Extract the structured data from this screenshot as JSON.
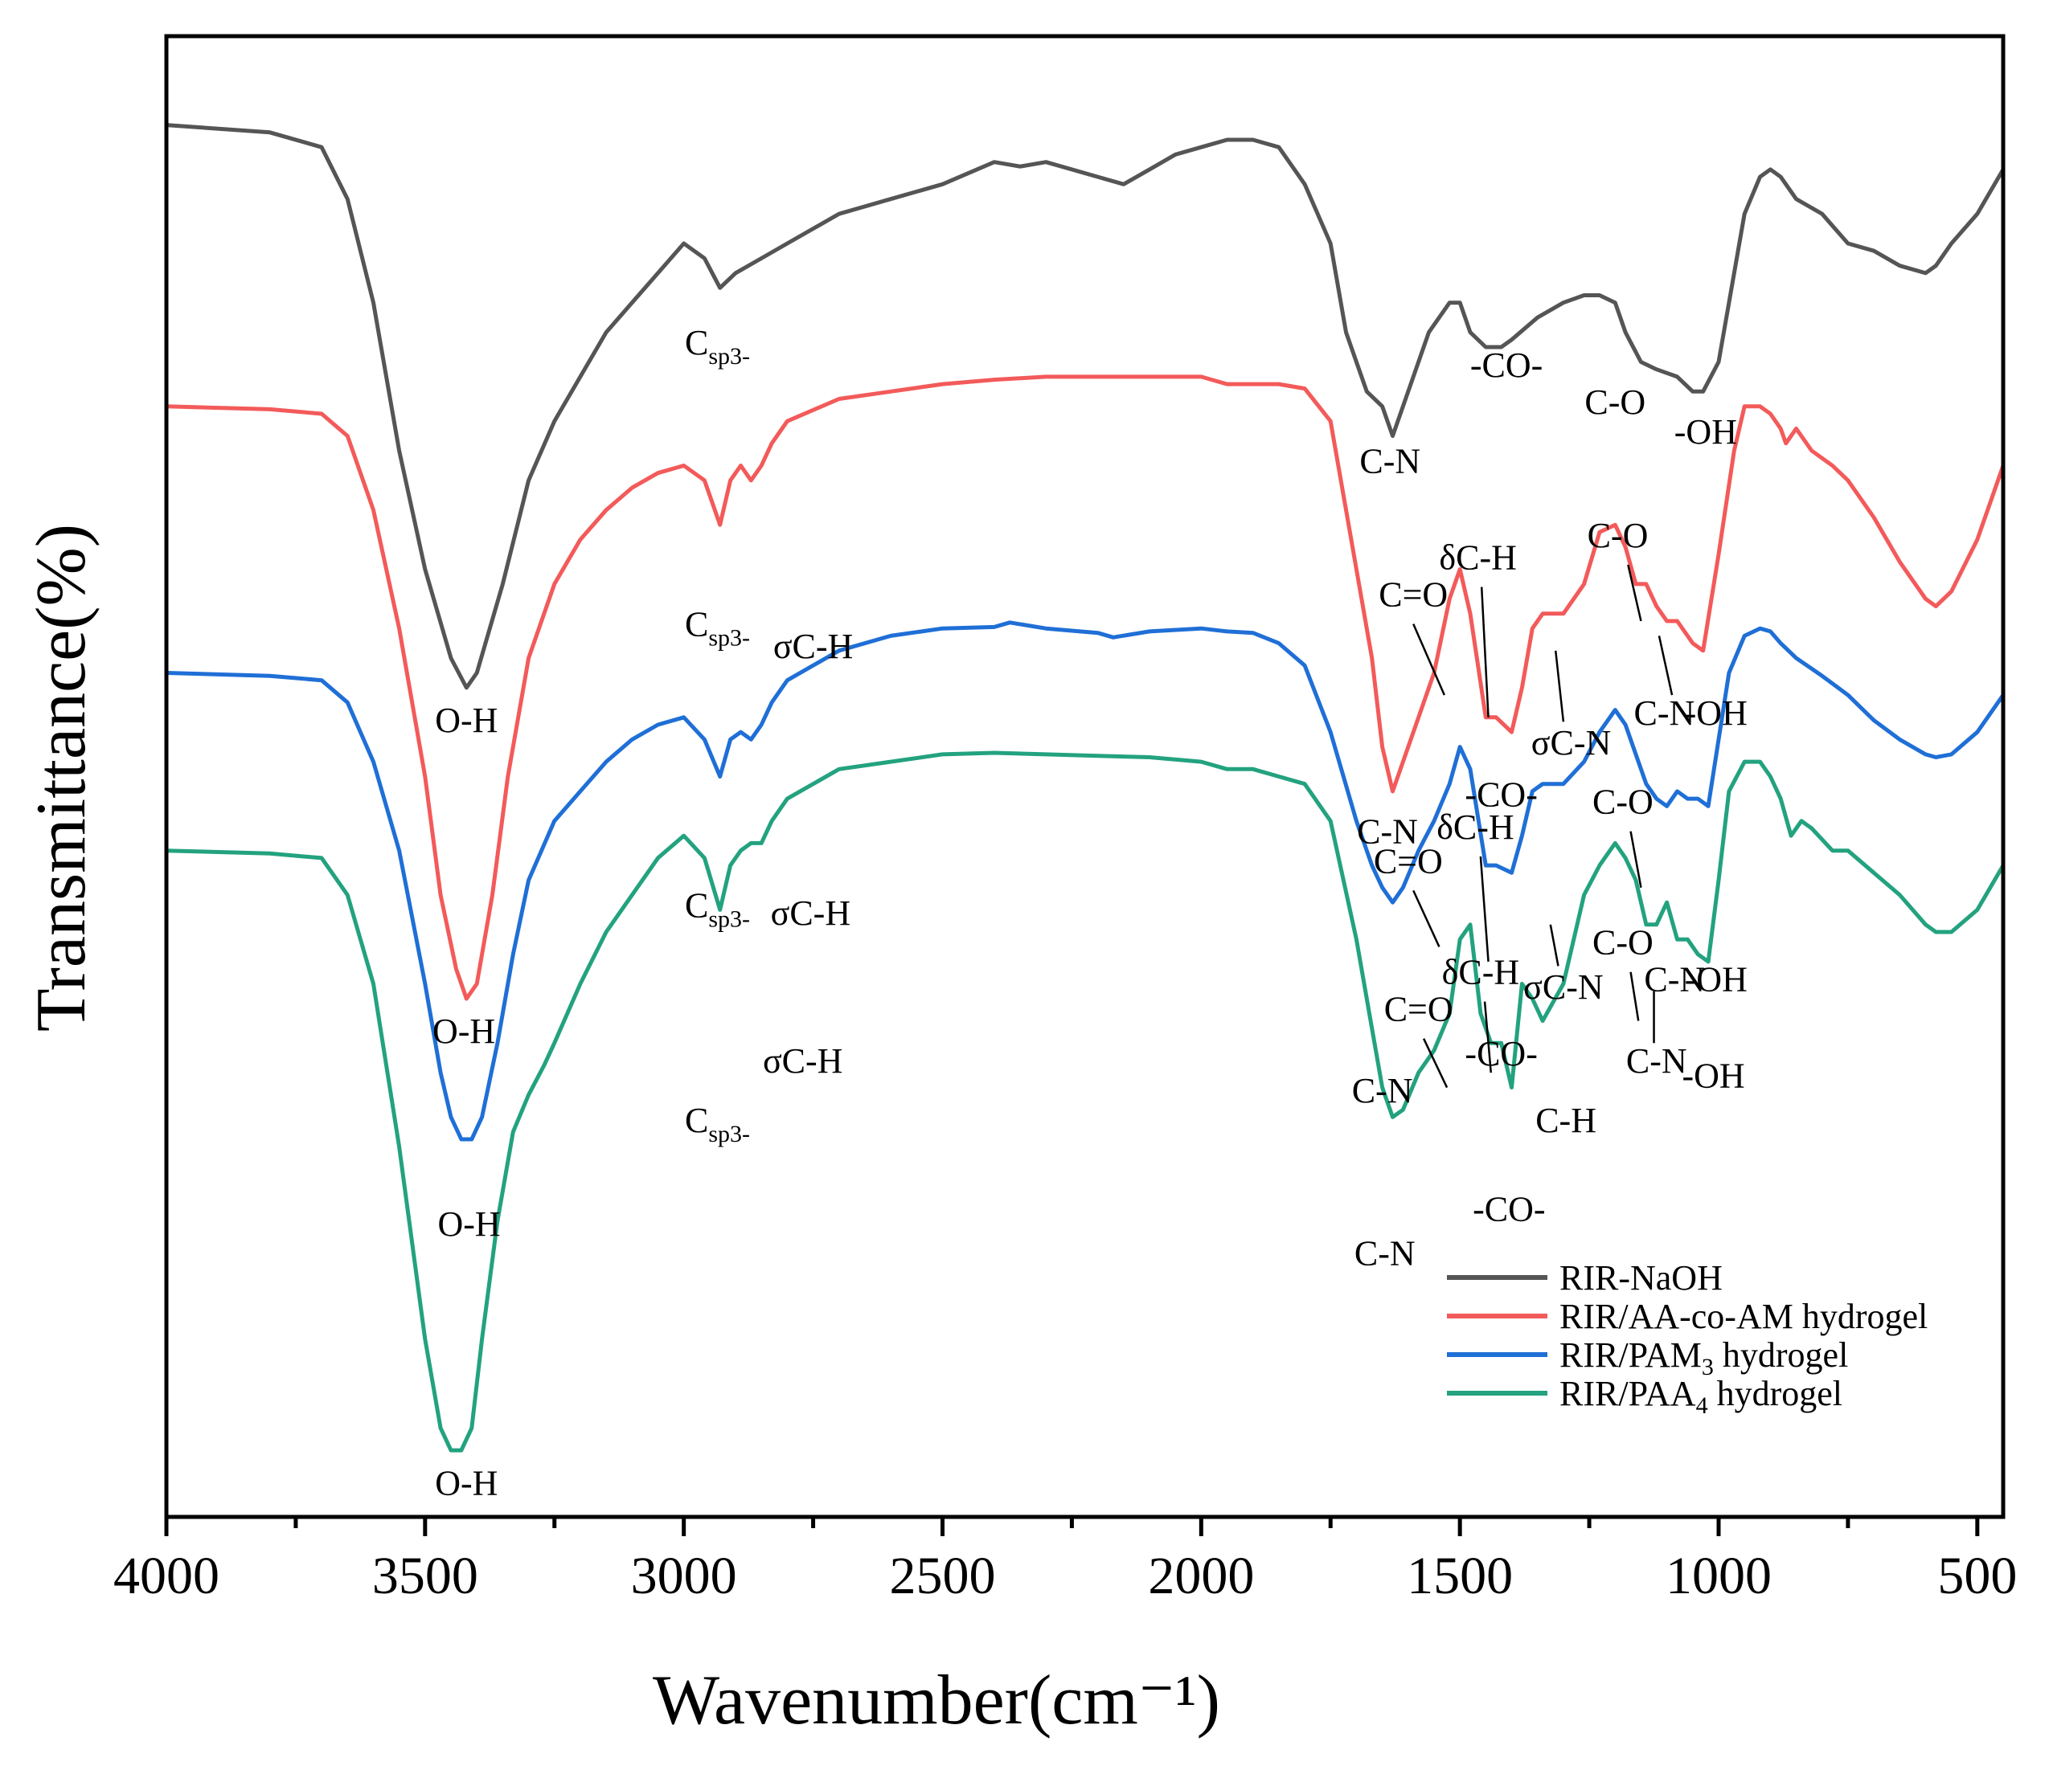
{
  "chart_data": {
    "type": "line",
    "title": "",
    "xlabel": "Wavenumber(cm⁻¹)",
    "ylabel": "Transmittance(%)",
    "xlim": [
      4000,
      450
    ],
    "ylim": [
      0,
      100
    ],
    "xticks": [
      4000,
      3500,
      3000,
      2500,
      2000,
      1500,
      1000,
      500
    ],
    "x_minor_ticks": [
      3750,
      3250,
      2750,
      2250,
      1750,
      1250,
      750
    ],
    "grid": false,
    "legend_position": "bottom-right",
    "colors": {
      "RIR-NaOH": "#555555",
      "RIR/AA-co-AM hydrogel": "#f35a5a",
      "RIR/PAM3 hydrogel": "#1f6fd6",
      "RIR/PAA4 hydrogel": "#23a27f"
    },
    "legend": [
      {
        "name": "RIR-NaOH",
        "color": "#555555",
        "base": "RIR-NaOH",
        "sub": "",
        "tail": ""
      },
      {
        "name": "RIR/AA-co-AM hydrogel",
        "color": "#f35a5a",
        "base": "RIR/AA-co-AM hydrogel",
        "sub": "",
        "tail": ""
      },
      {
        "name": "RIR/PAM3 hydrogel",
        "color": "#1f6fd6",
        "base": "RIR/PAM",
        "sub": "3",
        "tail": " hydrogel"
      },
      {
        "name": "RIR/PAA4 hydrogel",
        "color": "#23a27f",
        "base": "RIR/PAA",
        "sub": "4",
        "tail": " hydrogel"
      }
    ],
    "series": [
      {
        "name": "RIR-NaOH",
        "color": "#555555",
        "x": [
          4000,
          3800,
          3700,
          3650,
          3600,
          3550,
          3500,
          3450,
          3420,
          3400,
          3350,
          3300,
          3250,
          3200,
          3150,
          3100,
          3050,
          3000,
          2960,
          2930,
          2900,
          2850,
          2800,
          2700,
          2600,
          2500,
          2400,
          2350,
          2300,
          2200,
          2150,
          2100,
          2050,
          2000,
          1950,
          1900,
          1850,
          1800,
          1750,
          1720,
          1700,
          1680,
          1650,
          1630,
          1600,
          1560,
          1520,
          1500,
          1480,
          1450,
          1420,
          1400,
          1350,
          1300,
          1260,
          1230,
          1200,
          1180,
          1150,
          1120,
          1080,
          1050,
          1030,
          1000,
          980,
          950,
          920,
          900,
          880,
          850,
          800,
          750,
          700,
          650,
          600,
          580,
          550,
          500,
          450
        ],
        "y": [
          94,
          93.5,
          92.5,
          89,
          82,
          72,
          64,
          58,
          56,
          57,
          63,
          70,
          74,
          77,
          80,
          82,
          84,
          86,
          85,
          83,
          84,
          85,
          86,
          88,
          89,
          90,
          91.5,
          91.2,
          91.5,
          90.5,
          90,
          91,
          92,
          92.5,
          93,
          93,
          92.5,
          90,
          86,
          80,
          78,
          76,
          75,
          73,
          76,
          80,
          82,
          82,
          80,
          79,
          79,
          79.5,
          81,
          82,
          82.5,
          82.5,
          82,
          80,
          78,
          77.5,
          77,
          76,
          76,
          78,
          82,
          88,
          90.5,
          91,
          90.5,
          89,
          88,
          86,
          85.5,
          84.5,
          84,
          84.5,
          86,
          88,
          91
        ]
      },
      {
        "name": "RIR/AA-co-AM hydrogel",
        "color": "#f35a5a",
        "x": [
          4000,
          3800,
          3700,
          3650,
          3600,
          3550,
          3500,
          3470,
          3440,
          3420,
          3400,
          3370,
          3340,
          3300,
          3250,
          3200,
          3150,
          3100,
          3050,
          3000,
          2960,
          2930,
          2910,
          2890,
          2870,
          2850,
          2830,
          2800,
          2700,
          2600,
          2500,
          2400,
          2300,
          2200,
          2100,
          2000,
          1950,
          1900,
          1850,
          1800,
          1750,
          1700,
          1670,
          1650,
          1630,
          1610,
          1580,
          1550,
          1520,
          1500,
          1480,
          1450,
          1430,
          1400,
          1380,
          1360,
          1340,
          1300,
          1260,
          1230,
          1200,
          1180,
          1160,
          1140,
          1120,
          1100,
          1080,
          1050,
          1030,
          1000,
          970,
          950,
          920,
          900,
          880,
          870,
          850,
          820,
          780,
          750,
          700,
          650,
          600,
          580,
          550,
          500,
          450
        ],
        "y": [
          75,
          74.8,
          74.5,
          73,
          68,
          60,
          50,
          42,
          37,
          35,
          36,
          42,
          50,
          58,
          63,
          66,
          68,
          69.5,
          70.5,
          71,
          70,
          67,
          70,
          71,
          70,
          71,
          72.5,
          74,
          75.5,
          76,
          76.5,
          76.8,
          77,
          77,
          77,
          77,
          76.5,
          76.5,
          76.5,
          76.2,
          74,
          64,
          58,
          52,
          49,
          51,
          54,
          57,
          62,
          64,
          61,
          54,
          54,
          53,
          56,
          60,
          61,
          61,
          63,
          66.5,
          67,
          65.5,
          63,
          63,
          61.5,
          60.5,
          60.5,
          59,
          58.5,
          65,
          72,
          75,
          75,
          74.5,
          73.5,
          72.5,
          73.5,
          72,
          71,
          70,
          67.5,
          64.5,
          62,
          61.5,
          62.5,
          66,
          71
        ]
      },
      {
        "name": "RIR/PAM3 hydrogel",
        "color": "#1f6fd6",
        "x": [
          4000,
          3800,
          3700,
          3650,
          3600,
          3550,
          3500,
          3470,
          3450,
          3430,
          3410,
          3390,
          3360,
          3330,
          3300,
          3250,
          3200,
          3150,
          3100,
          3050,
          3000,
          2960,
          2930,
          2910,
          2890,
          2870,
          2850,
          2830,
          2800,
          2700,
          2600,
          2500,
          2400,
          2370,
          2300,
          2200,
          2170,
          2100,
          2000,
          1950,
          1900,
          1850,
          1800,
          1750,
          1700,
          1670,
          1650,
          1630,
          1610,
          1580,
          1550,
          1520,
          1500,
          1480,
          1450,
          1430,
          1400,
          1380,
          1360,
          1340,
          1300,
          1260,
          1230,
          1200,
          1180,
          1160,
          1140,
          1120,
          1100,
          1080,
          1060,
          1040,
          1020,
          1000,
          980,
          950,
          920,
          900,
          880,
          850,
          800,
          750,
          700,
          650,
          600,
          580,
          550,
          500,
          450
        ],
        "y": [
          57,
          56.8,
          56.5,
          55,
          51,
          45,
          36,
          30,
          27,
          25.5,
          25.5,
          27,
          32,
          38,
          43,
          47,
          49,
          51,
          52.5,
          53.5,
          54,
          52.5,
          50,
          52.5,
          53,
          52.5,
          53.5,
          55,
          56.5,
          58.5,
          59.5,
          60,
          60.1,
          60.4,
          60,
          59.7,
          59.4,
          59.8,
          60,
          59.8,
          59.7,
          59,
          57.5,
          53,
          47,
          44,
          42.5,
          41.5,
          42.5,
          45,
          47,
          49.5,
          52,
          50.5,
          44,
          44,
          43.5,
          46,
          49,
          49.5,
          49.5,
          51,
          53,
          54.5,
          53.5,
          51.5,
          49.5,
          48.5,
          48,
          49,
          48.5,
          48.5,
          48,
          52.5,
          57,
          59.5,
          60,
          59.8,
          59,
          58,
          56.8,
          55.5,
          53.8,
          52.5,
          51.5,
          51.3,
          51.5,
          53,
          55.5
        ]
      },
      {
        "name": "RIR/PAA4 hydrogel",
        "color": "#23a27f",
        "x": [
          4000,
          3800,
          3700,
          3650,
          3600,
          3550,
          3500,
          3470,
          3450,
          3430,
          3410,
          3390,
          3360,
          3330,
          3300,
          3270,
          3250,
          3200,
          3150,
          3100,
          3050,
          3000,
          2960,
          2930,
          2910,
          2890,
          2870,
          2850,
          2830,
          2800,
          2700,
          2600,
          2500,
          2400,
          2300,
          2200,
          2100,
          2000,
          1950,
          1900,
          1850,
          1800,
          1750,
          1700,
          1670,
          1650,
          1630,
          1610,
          1580,
          1550,
          1520,
          1500,
          1480,
          1460,
          1440,
          1420,
          1400,
          1380,
          1360,
          1340,
          1300,
          1260,
          1230,
          1200,
          1180,
          1160,
          1140,
          1120,
          1100,
          1080,
          1060,
          1040,
          1020,
          1000,
          980,
          950,
          920,
          900,
          880,
          860,
          840,
          820,
          780,
          750,
          700,
          650,
          600,
          580,
          550,
          500,
          450
        ],
        "y": [
          45,
          44.8,
          44.5,
          42,
          36,
          25,
          12,
          6,
          4.5,
          4.5,
          6,
          12,
          20,
          26,
          28.5,
          30.5,
          32,
          36,
          39.5,
          42,
          44.5,
          46,
          44.5,
          41,
          44,
          45,
          45.5,
          45.5,
          47,
          48.5,
          50.5,
          51,
          51.5,
          51.6,
          51.5,
          51.4,
          51.3,
          51,
          50.5,
          50.5,
          50,
          49.5,
          47,
          39,
          33,
          29,
          27,
          27.5,
          30,
          31.5,
          34,
          39,
          40,
          34,
          32,
          32,
          29,
          36,
          35,
          33.5,
          36,
          42,
          44,
          45.5,
          44.5,
          43,
          40,
          40,
          41.5,
          39,
          39,
          38,
          37.5,
          43,
          49,
          51,
          51,
          50,
          48.5,
          46,
          47,
          46.5,
          45,
          45,
          43.5,
          42,
          40,
          39.5,
          39.5,
          41,
          44
        ]
      }
    ],
    "annotations": [
      {
        "text": "C",
        "sub": "sp3-",
        "x": 2935,
        "ylbl": 78.5
      },
      {
        "text": "C-N",
        "x": 1635,
        "ylbl": 70.5
      },
      {
        "text": "-CO-",
        "x": 1410,
        "ylbl": 77
      },
      {
        "text": "C-O",
        "x": 1200,
        "ylbl": 74.5
      },
      {
        "text": "-OH",
        "x": 1025,
        "ylbl": 72.5
      },
      {
        "text": "O-H",
        "x": 3420,
        "ylbl": 53
      },
      {
        "text": "σC-H",
        "x": 2750,
        "ylbl": 58
      },
      {
        "text": "C",
        "sub": "sp3-",
        "x": 2935,
        "ylbl": 59.5
      },
      {
        "text": "C=O",
        "x": 1590,
        "ylbl": 61.5
      },
      {
        "text": "δC-H",
        "x": 1465,
        "ylbl": 64
      },
      {
        "text": "C-O",
        "x": 1195,
        "ylbl": 65.5
      },
      {
        "text": "C-N",
        "x": 1105,
        "ylbl": 53.5
      },
      {
        "text": "-OH",
        "x": 1005,
        "ylbl": 53.5
      },
      {
        "text": "σC-N",
        "x": 1285,
        "ylbl": 51.5
      },
      {
        "text": "-CO-",
        "x": 1420,
        "ylbl": 48
      },
      {
        "text": "C-N",
        "x": 1640,
        "ylbl": 45.5
      },
      {
        "text": "O-H",
        "x": 3425,
        "ylbl": 32
      },
      {
        "text": "σC-H",
        "x": 2755,
        "ylbl": 40
      },
      {
        "text": "C",
        "sub": "sp3-",
        "x": 2935,
        "ylbl": 40.5
      },
      {
        "text": "C=O",
        "x": 1600,
        "ylbl": 43.5
      },
      {
        "text": "δC-H",
        "x": 1470,
        "ylbl": 45.8
      },
      {
        "text": "C-O",
        "x": 1185,
        "ylbl": 47.5
      },
      {
        "text": "σC-N",
        "x": 1300,
        "ylbl": 35
      },
      {
        "text": "C-N",
        "x": 1085,
        "ylbl": 35.5
      },
      {
        "text": "-OH",
        "x": 1005,
        "ylbl": 35.5
      },
      {
        "text": "-CO-",
        "x": 1420,
        "ylbl": 30.5
      },
      {
        "text": "C-N",
        "x": 1650,
        "ylbl": 28
      },
      {
        "text": "O-H",
        "x": 3415,
        "ylbl": 19
      },
      {
        "text": "σC-H",
        "x": 2770,
        "ylbl": 30
      },
      {
        "text": "C",
        "sub": "sp3-",
        "x": 2935,
        "ylbl": 26
      },
      {
        "text": "C=O",
        "x": 1580,
        "ylbl": 33.5
      },
      {
        "text": "δC-H",
        "x": 1460,
        "ylbl": 36
      },
      {
        "text": "C-O",
        "x": 1185,
        "ylbl": 38
      },
      {
        "text": "C-H",
        "x": 1295,
        "ylbl": 26
      },
      {
        "text": "C-N",
        "x": 1120,
        "ylbl": 30
      },
      {
        "text": "-OH",
        "x": 1010,
        "ylbl": 29
      },
      {
        "text": "-CO-",
        "x": 1405,
        "ylbl": 20
      },
      {
        "text": "C-N",
        "x": 1645,
        "ylbl": 17
      },
      {
        "text": "O-H",
        "x": 3420,
        "ylbl": 1.5
      }
    ],
    "leader_lines": [
      {
        "x1": 1590,
        "y1": 60.3,
        "x2": 1530,
        "y2": 55.5
      },
      {
        "x1": 1458,
        "y1": 62.8,
        "x2": 1445,
        "y2": 54
      },
      {
        "x1": 1175,
        "y1": 64.3,
        "x2": 1150,
        "y2": 60.5
      },
      {
        "x1": 1090,
        "y1": 55.5,
        "x2": 1115,
        "y2": 59.5
      },
      {
        "x1": 1300,
        "y1": 53.7,
        "x2": 1315,
        "y2": 58.5
      },
      {
        "x1": 1590,
        "y1": 42.3,
        "x2": 1540,
        "y2": 38.5
      },
      {
        "x1": 1460,
        "y1": 44.6,
        "x2": 1445,
        "y2": 37.5
      },
      {
        "x1": 1170,
        "y1": 46.3,
        "x2": 1150,
        "y2": 42.5
      },
      {
        "x1": 1310,
        "y1": 37.2,
        "x2": 1325,
        "y2": 40
      },
      {
        "x1": 1570,
        "y1": 32.3,
        "x2": 1525,
        "y2": 29
      },
      {
        "x1": 1452,
        "y1": 34.8,
        "x2": 1440,
        "y2": 30
      },
      {
        "x1": 1170,
        "y1": 36.8,
        "x2": 1155,
        "y2": 33.5
      },
      {
        "x1": 1125,
        "y1": 32,
        "x2": 1125,
        "y2": 35.5
      }
    ]
  }
}
